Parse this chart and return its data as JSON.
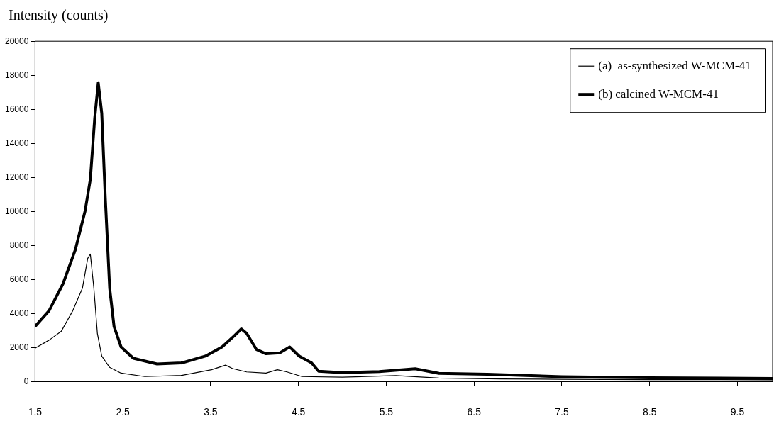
{
  "chart_data": {
    "type": "line",
    "ylabel": "Intensity (counts)",
    "xlim": [
      1.5,
      9.9
    ],
    "xticks": [
      1.5,
      2.5,
      3.5,
      4.5,
      5.5,
      6.5,
      7.5,
      8.5,
      9.5
    ],
    "ylim": [
      0,
      20000
    ],
    "yticks": [
      0,
      2000,
      4000,
      6000,
      8000,
      10000,
      12000,
      14000,
      16000,
      18000,
      20000
    ],
    "grid": false,
    "legend": "top right",
    "marker": "none",
    "line_style": "solid",
    "series": [
      {
        "name": "(a)  as-synthesized W-MCM-41",
        "color": "#000000",
        "x": [
          1.5,
          1.66,
          1.8,
          1.93,
          2.04,
          2.1,
          2.13,
          2.17,
          2.21,
          2.26,
          2.35,
          2.48,
          2.75,
          3.17,
          3.51,
          3.67,
          3.75,
          3.91,
          4.13,
          4.26,
          4.37,
          4.54,
          5.0,
          5.61,
          6.1,
          6.8,
          7.5,
          8.5,
          9.9
        ],
        "values": [
          1960,
          2430,
          2960,
          4160,
          5490,
          7230,
          7490,
          5490,
          2830,
          1490,
          830,
          490,
          290,
          360,
          690,
          960,
          760,
          560,
          490,
          690,
          560,
          290,
          250,
          350,
          200,
          150,
          130,
          110,
          100
        ]
      },
      {
        "name": "(b) calcined W-MCM-41",
        "color": "#000000",
        "x": [
          1.5,
          1.66,
          1.82,
          1.96,
          2.07,
          2.13,
          2.18,
          2.22,
          2.26,
          2.3,
          2.35,
          2.4,
          2.48,
          2.62,
          2.89,
          3.17,
          3.44,
          3.63,
          3.77,
          3.85,
          3.91,
          4.02,
          4.13,
          4.29,
          4.4,
          4.51,
          4.65,
          4.73,
          5.0,
          5.42,
          5.83,
          6.1,
          6.65,
          7.5,
          8.5,
          9.9
        ],
        "values": [
          3230,
          4160,
          5760,
          7760,
          10020,
          11890,
          15490,
          17560,
          15760,
          10820,
          5490,
          3230,
          2030,
          1360,
          1030,
          1090,
          1490,
          2030,
          2690,
          3090,
          2830,
          1890,
          1630,
          1690,
          2030,
          1490,
          1090,
          600,
          520,
          580,
          750,
          480,
          420,
          280,
          220,
          180
        ]
      }
    ]
  }
}
